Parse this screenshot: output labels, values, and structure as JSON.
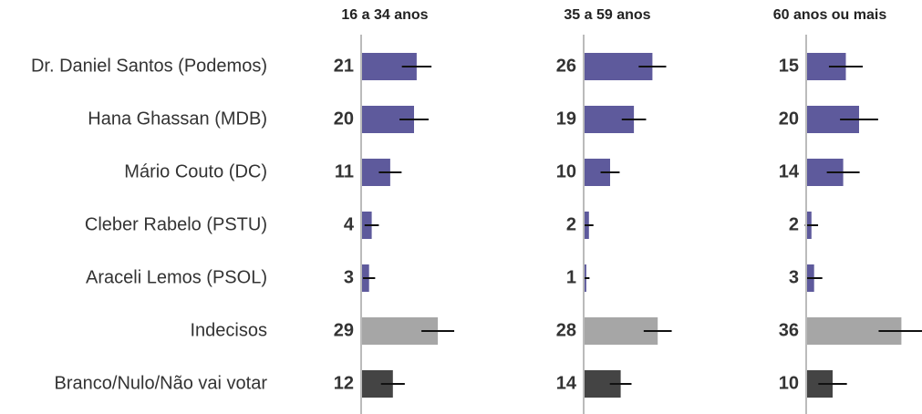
{
  "chart_data": {
    "type": "bar",
    "categories": [
      "Dr. Daniel Santos (Podemos)",
      "Hana Ghassan (MDB)",
      "Mário Couto (DC)",
      "Cleber Rabelo (PSTU)",
      "Araceli Lemos (PSOL)",
      "Indecisos",
      "Branco/Nulo/Não vai votar"
    ],
    "colors": [
      "#5e5a9c",
      "#5e5a9c",
      "#5e5a9c",
      "#5e5a9c",
      "#5e5a9c",
      "#a6a6a6",
      "#444444"
    ],
    "xlim": [
      0,
      40
    ],
    "panels": [
      {
        "title": "16 a 34 anos",
        "values": [
          21,
          20,
          11,
          4,
          3,
          29,
          12
        ],
        "errors": [
          5.6,
          5.5,
          4.3,
          2.7,
          2.3,
          6.2,
          4.5
        ]
      },
      {
        "title": "35 a 59 anos",
        "values": [
          26,
          19,
          10,
          2,
          1,
          28,
          14
        ],
        "errors": [
          5.2,
          4.6,
          3.6,
          1.7,
          1.2,
          5.3,
          4.1
        ]
      },
      {
        "title": "60 anos ou mais",
        "values": [
          15,
          20,
          14,
          2,
          3,
          36,
          10
        ],
        "errors": [
          6.4,
          7.2,
          6.2,
          2.5,
          3.1,
          8.6,
          5.4
        ]
      }
    ]
  }
}
